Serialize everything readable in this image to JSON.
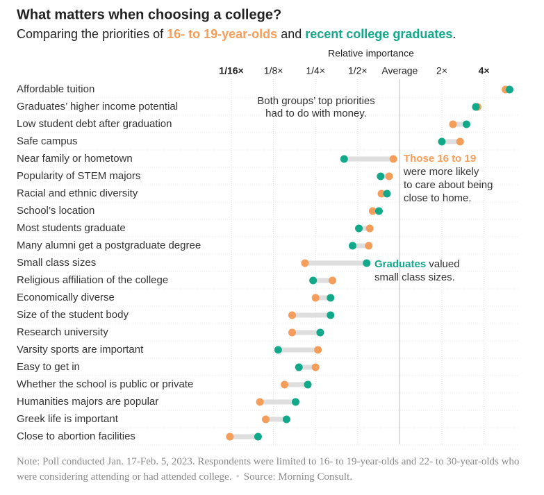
{
  "chart_data": {
    "type": "dumbbell",
    "title": "What matters when choosing a college?",
    "subtitle": [
      "Comparing the priorities of",
      "and",
      "."
    ],
    "x_label": "Relative importance",
    "xscale": "log",
    "xlim": [
      0.05,
      7
    ],
    "xticks": [
      {
        "value": 0.0625,
        "label": "1/16×"
      },
      {
        "value": 0.125,
        "label": "1/8×"
      },
      {
        "value": 0.25,
        "label": "1/4×"
      },
      {
        "value": 0.5,
        "label": "1/2×"
      },
      {
        "value": 1,
        "label": "Average"
      },
      {
        "value": 2,
        "label": "2×"
      },
      {
        "value": 4,
        "label": "4×"
      }
    ],
    "grid": true,
    "categories": [
      "Affordable tuition",
      "Graduates’ higher income potential",
      "Low student debt after graduation",
      "Safe campus",
      "Near family or hometown",
      "Popularity of STEM majors",
      "Racial and ethnic diversity",
      "School’s location",
      "Most students graduate",
      "Many alumni get a postgraduate degree",
      "Small class sizes",
      "Religious affiliation of the college",
      "Economically diverse",
      "Size of the student body",
      "Research university",
      "Varsity sports are important",
      "Easy to get in",
      "Whether the school is public or private",
      "Humanities majors are popular",
      "Greek life is important",
      "Close to abortion facilities"
    ],
    "series": [
      {
        "name": "16- to 19-year-olds",
        "color": "#f59d5b",
        "values": [
          5.7,
          3.6,
          2.4,
          2.7,
          0.9,
          0.84,
          0.74,
          0.64,
          0.61,
          0.6,
          0.21,
          0.33,
          0.25,
          0.17,
          0.17,
          0.26,
          0.25,
          0.15,
          0.1,
          0.11,
          0.061
        ]
      },
      {
        "name": "recent college graduates",
        "color": "#12a98a",
        "values": [
          6.1,
          3.5,
          3.0,
          2.0,
          0.4,
          0.73,
          0.81,
          0.71,
          0.51,
          0.46,
          0.58,
          0.24,
          0.32,
          0.32,
          0.27,
          0.135,
          0.19,
          0.22,
          0.18,
          0.155,
          0.097
        ]
      }
    ],
    "annotations": [
      {
        "lines": [
          "Both groups’ top priorities",
          "had to do with money."
        ]
      },
      {
        "lead": "Those 16 to 19",
        "lines": [
          "were more likely",
          "to care about being",
          "close to home."
        ]
      },
      {
        "lead": "Graduates",
        "rest": "valued",
        "lines": [
          "small class sizes."
        ]
      }
    ],
    "note": "Note: Poll conducted Jan. 17-Feb. 5, 2023. Respondents were limited to 16- to 19-year-olds and 22- to 30-year-olds who were considering attending or had attended college.",
    "source": "Source: Morning Consult."
  }
}
